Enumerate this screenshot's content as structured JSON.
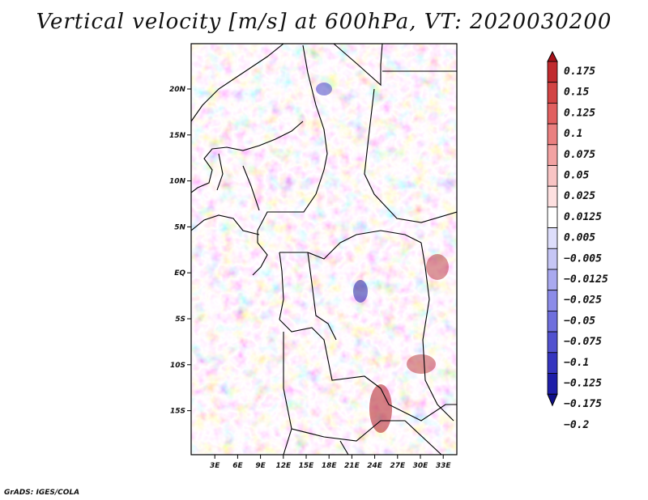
{
  "title": "Vertical velocity [m/s] at 600hPa, VT: 2020030200",
  "credit": "GrADS: IGES/COLA",
  "chart_data": {
    "type": "heatmap",
    "variable": "Vertical velocity",
    "units": "m/s",
    "level": "600hPa",
    "valid_time": "2020030200",
    "lon_range": [
      0,
      36
    ],
    "lat_range": [
      -20,
      25
    ],
    "x_tick_labels": [
      "3E",
      "6E",
      "9E",
      "12E",
      "15E",
      "18E",
      "21E",
      "24E",
      "27E",
      "30E",
      "33E"
    ],
    "y_tick_labels": [
      "20N",
      "15N",
      "10N",
      "5N",
      "EQ",
      "5S",
      "10S",
      "15S"
    ],
    "colorbar_levels": [
      "0.175",
      "0.15",
      "0.125",
      "0.1",
      "0.075",
      "0.05",
      "0.025",
      "0.0125",
      "0.005",
      "−0.005",
      "−0.0125",
      "−0.025",
      "−0.05",
      "−0.075",
      "−0.1",
      "−0.125",
      "−0.175",
      "−0.2"
    ],
    "colorbar_colors": [
      "#a8121a",
      "#c02a2e",
      "#d24444",
      "#e16060",
      "#ea8080",
      "#f2a2a2",
      "#f8c4c4",
      "#fde0e0",
      "#ffffff",
      "#dedefb",
      "#c6c6f5",
      "#a9a9ef",
      "#8c8ce8",
      "#6f6fdd",
      "#5252cf",
      "#3535bf",
      "#1e1ea8",
      "#10108a"
    ]
  }
}
